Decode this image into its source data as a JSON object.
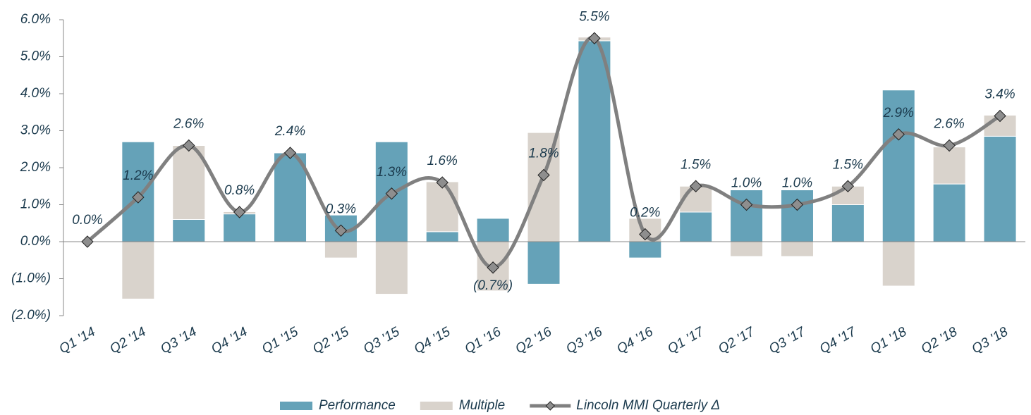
{
  "chart_data": {
    "type": "combo",
    "categories": [
      "Q1 '14",
      "Q2 '14",
      "Q3 '14",
      "Q4 '14",
      "Q1 '15",
      "Q2 '15",
      "Q3 '15",
      "Q4 '15",
      "Q1 '16",
      "Q2 '16",
      "Q3 '16",
      "Q4 '16",
      "Q1 '17",
      "Q2 '17",
      "Q3 '17",
      "Q4 '17",
      "Q1 '18",
      "Q2 '18",
      "Q3 '18"
    ],
    "series": [
      {
        "name": "Performance",
        "type": "bar",
        "color": "#65a2b8",
        "values": [
          0,
          2.7,
          0.6,
          0.75,
          2.4,
          0.72,
          2.7,
          0.27,
          0.63,
          -1.15,
          5.43,
          -0.44,
          0.8,
          1.4,
          1.4,
          1.0,
          4.1,
          1.56,
          2.85
        ]
      },
      {
        "name": "Multiple",
        "type": "bar",
        "color": "#d9d3cc",
        "values": [
          0,
          -1.55,
          2.0,
          0.06,
          0,
          -0.44,
          -1.42,
          1.35,
          -1.33,
          2.95,
          0.1,
          0.63,
          0.7,
          -0.4,
          -0.4,
          0.5,
          -1.2,
          1.0,
          0.57
        ]
      },
      {
        "name": "Lincoln MMI Quarterly Δ",
        "type": "line",
        "color": "#808080",
        "marker_color": "#8e8e8e",
        "values": [
          0.0,
          1.2,
          2.6,
          0.8,
          2.4,
          0.3,
          1.3,
          1.6,
          -0.7,
          1.8,
          5.5,
          0.2,
          1.5,
          1.0,
          1.0,
          1.5,
          2.9,
          2.6,
          3.4
        ],
        "value_labels": [
          "0.0%",
          "1.2%",
          "2.6%",
          "0.8%",
          "2.4%",
          "0.3%",
          "1.3%",
          "1.6%",
          "(0.7%)",
          "1.8%",
          "5.5%",
          "0.2%",
          "1.5%",
          "1.0%",
          "1.0%",
          "1.5%",
          "2.9%",
          "2.6%",
          "3.4%"
        ]
      }
    ],
    "ylim": [
      -2,
      6
    ],
    "yticks": [
      {
        "value": -2,
        "label": "(2.0%)"
      },
      {
        "value": -1,
        "label": "(1.0%)"
      },
      {
        "value": 0,
        "label": "0.0%"
      },
      {
        "value": 1,
        "label": "1.0%"
      },
      {
        "value": 2,
        "label": "2.0%"
      },
      {
        "value": 3,
        "label": "3.0%"
      },
      {
        "value": 4,
        "label": "4.0%"
      },
      {
        "value": 5,
        "label": "5.0%"
      },
      {
        "value": 6,
        "label": "6.0%"
      }
    ],
    "grid": false,
    "legend": "bottom"
  }
}
